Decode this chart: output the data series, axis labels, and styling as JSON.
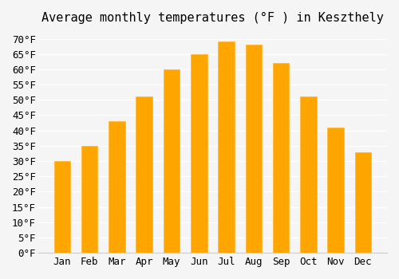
{
  "months": [
    "Jan",
    "Feb",
    "Mar",
    "Apr",
    "May",
    "Jun",
    "Jul",
    "Aug",
    "Sep",
    "Oct",
    "Nov",
    "Dec"
  ],
  "values": [
    30,
    35,
    43,
    51,
    60,
    65,
    69,
    68,
    62,
    51,
    41,
    33
  ],
  "bar_color": "#FFA500",
  "bar_edge_color": "#FFB733",
  "title": "Average monthly temperatures (°F ) in Keszthely",
  "ylabel": "",
  "xlabel": "",
  "ylim": [
    0,
    72
  ],
  "yticks": [
    0,
    5,
    10,
    15,
    20,
    25,
    30,
    35,
    40,
    45,
    50,
    55,
    60,
    65,
    70
  ],
  "background_color": "#f5f5f5",
  "grid_color": "#ffffff",
  "title_fontsize": 11,
  "tick_fontsize": 9
}
